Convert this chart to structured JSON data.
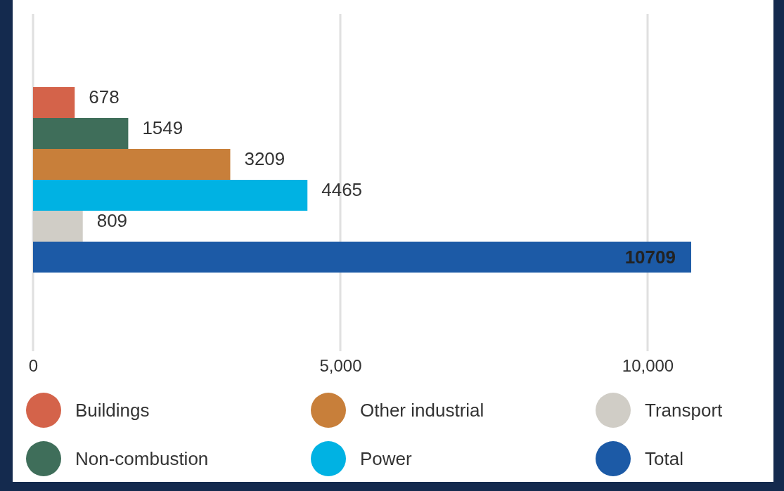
{
  "chart_data": {
    "type": "bar",
    "orientation": "horizontal",
    "categories": [
      null
    ],
    "series": [
      {
        "name": "Buildings",
        "color": "#d4634a",
        "values": [
          678
        ]
      },
      {
        "name": "Non-combustion",
        "color": "#3f6e5a",
        "values": [
          1549
        ]
      },
      {
        "name": "Other industrial",
        "color": "#c87f3a",
        "values": [
          3209
        ]
      },
      {
        "name": "Power",
        "color": "#00b2e3",
        "values": [
          4465
        ]
      },
      {
        "name": "Transport",
        "color": "#d0cdc6",
        "values": [
          809
        ]
      },
      {
        "name": "Total",
        "color": "#1c5aa6",
        "values": [
          10709
        ]
      }
    ],
    "xlim": [
      0,
      12000
    ],
    "xticks": [
      0,
      {
        "value": 5000,
        "label": "5,000"
      },
      {
        "value": 10000,
        "label": "10,000"
      }
    ],
    "grid": "x",
    "legend": "bottom",
    "data_labels": true
  }
}
